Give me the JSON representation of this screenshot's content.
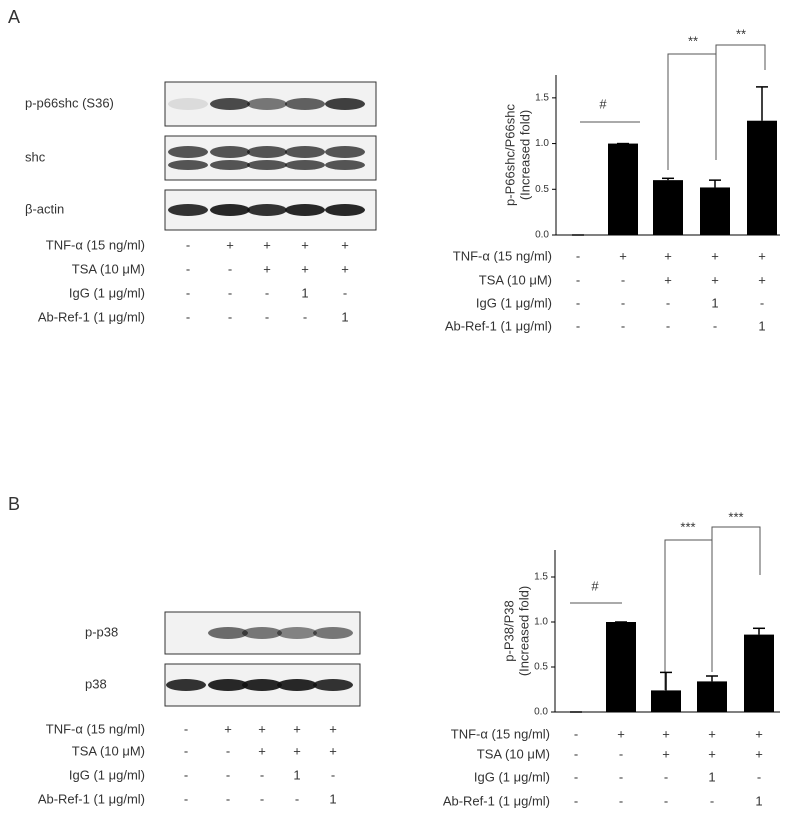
{
  "chart_data": [
    {
      "type": "bar",
      "ylabel": [
        "p-P66shc/P66shc",
        "(Increased fold)"
      ],
      "values": [
        0,
        1.0,
        0.6,
        0.52,
        1.25
      ],
      "errors": [
        0,
        0,
        0.02,
        0.08,
        0.37
      ],
      "color": "#000000",
      "ylim": [
        0,
        1.75
      ],
      "yticks": [
        {
          "value": 0,
          "label": "0.0"
        },
        0.5,
        {
          "value": 1,
          "label": "1.0"
        },
        1.5
      ],
      "annotations": [
        "#",
        "**",
        "**"
      ],
      "treatments": [
        {
          "label": "TNF-α (15 ng/ml)",
          "marks": [
            "-",
            "+",
            "+",
            "+",
            "+"
          ]
        },
        {
          "label": "TSA (10 μM)",
          "marks": [
            "-",
            "-",
            "+",
            "+",
            "+"
          ]
        },
        {
          "label": "IgG (1 μg/ml)",
          "marks": [
            "-",
            "-",
            "-",
            "1",
            "-"
          ]
        },
        {
          "label": "Ab-Ref-1 (1 μg/ml)",
          "marks": [
            "-",
            "-",
            "-",
            "-",
            "1"
          ]
        }
      ]
    },
    {
      "type": "bar",
      "ylabel": [
        "p-P38/P38",
        "(Increased fold)"
      ],
      "values": [
        0,
        1.0,
        0.24,
        0.34,
        0.86
      ],
      "errors": [
        0,
        0,
        0.2,
        0.06,
        0.07
      ],
      "color": "#000000",
      "ylim": [
        0,
        1.8
      ],
      "yticks": [
        {
          "value": 0,
          "label": "0.0"
        },
        0.5,
        {
          "value": 1,
          "label": "1.0"
        },
        1.5
      ],
      "annotations": [
        "#",
        "***",
        "***"
      ],
      "treatments": [
        {
          "label": "TNF-α (15 ng/ml)",
          "marks": [
            "-",
            "+",
            "+",
            "+",
            "+"
          ]
        },
        {
          "label": "TSA (10 μM)",
          "marks": [
            "-",
            "-",
            "+",
            "+",
            "+"
          ]
        },
        {
          "label": "IgG (1 μg/ml)",
          "marks": [
            "-",
            "-",
            "-",
            "1",
            "-"
          ]
        },
        {
          "label": "Ab-Ref-1 (1 μg/ml)",
          "marks": [
            "-",
            "-",
            "-",
            "-",
            "1"
          ]
        }
      ]
    }
  ],
  "panels": [
    {
      "letter": "A",
      "blots": [
        "p-p66shc (S36)",
        "shc",
        "β-actin"
      ],
      "treatments": [
        {
          "label": "TNF-α (15 ng/ml)",
          "marks": [
            "-",
            "+",
            "+",
            "+",
            "+"
          ]
        },
        {
          "label": "TSA (10 μM)",
          "marks": [
            "-",
            "-",
            "+",
            "+",
            "+"
          ]
        },
        {
          "label": "IgG (1 μg/ml)",
          "marks": [
            "-",
            "-",
            "-",
            "1",
            "-"
          ]
        },
        {
          "label": "Ab-Ref-1 (1 μg/ml)",
          "marks": [
            "-",
            "-",
            "-",
            "-",
            "1"
          ]
        }
      ]
    },
    {
      "letter": "B",
      "blots": [
        "p-p38",
        "p38"
      ],
      "treatments": [
        {
          "label": "TNF-α (15 ng/ml)",
          "marks": [
            "-",
            "+",
            "+",
            "+",
            "+"
          ]
        },
        {
          "label": "TSA (10 μM)",
          "marks": [
            "-",
            "-",
            "+",
            "+",
            "+"
          ]
        },
        {
          "label": "IgG (1 μg/ml)",
          "marks": [
            "-",
            "-",
            "-",
            "1",
            "-"
          ]
        },
        {
          "label": "Ab-Ref-1 (1 μg/ml)",
          "marks": [
            "-",
            "-",
            "-",
            "-",
            "1"
          ]
        }
      ]
    }
  ]
}
